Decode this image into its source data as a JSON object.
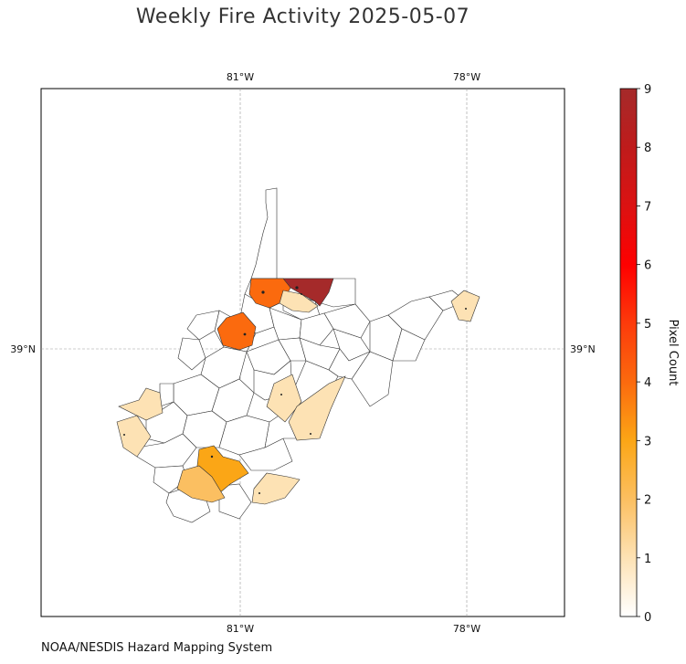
{
  "title": "Weekly Fire Activity 2025-05-07",
  "credit": "NOAA/NESDIS Hazard Mapping System",
  "axes": {
    "lon_ticks": [
      "81°W",
      "78°W"
    ],
    "lat_ticks": [
      "39°N"
    ],
    "grid": true
  },
  "colorbar": {
    "label": "Pixel Count",
    "min": 0,
    "max": 9,
    "ticks": [
      "0",
      "1",
      "2",
      "3",
      "4",
      "5",
      "6",
      "7",
      "8",
      "9"
    ],
    "colors": [
      "#ffffff",
      "#fde2b4",
      "#fbbf61",
      "#fba616",
      "#fb6a0e",
      "#fd3b0b",
      "#fe0000",
      "#dc1212",
      "#bf1b1b",
      "#a52a2a"
    ]
  },
  "chart_data": {
    "type": "choropleth",
    "title": "Weekly Fire Activity 2025-05-07",
    "region": "West Virginia counties",
    "value_label": "Pixel Count",
    "range": [
      0,
      9
    ],
    "highlighted_counties": [
      {
        "id": "hancock-top",
        "value": 9
      },
      {
        "id": "north-orange",
        "value": 4
      },
      {
        "id": "wood-area",
        "value": 4
      },
      {
        "id": "south-gold",
        "value": 3
      },
      {
        "id": "south-light",
        "value": 2
      },
      {
        "id": "north-small",
        "value": 1
      },
      {
        "id": "eastern-panhandle",
        "value": 1
      },
      {
        "id": "west-border-1",
        "value": 1
      },
      {
        "id": "west-border-2",
        "value": 1
      },
      {
        "id": "central-1",
        "value": 1
      },
      {
        "id": "central-2",
        "value": 1
      },
      {
        "id": "south-east",
        "value": 1
      }
    ]
  }
}
